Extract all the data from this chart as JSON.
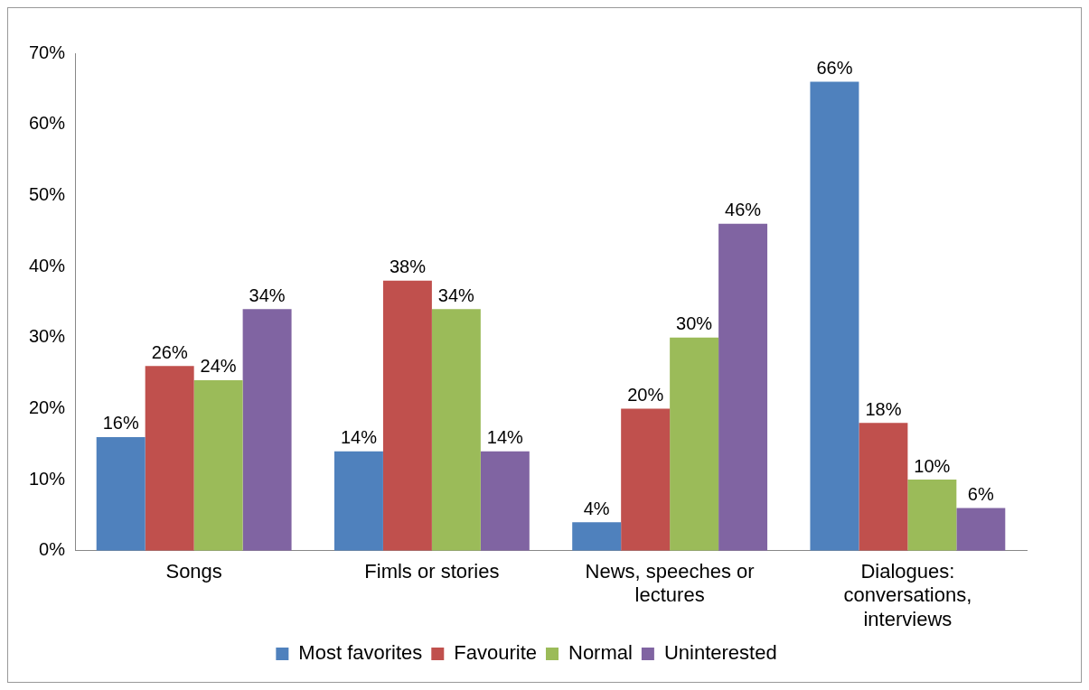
{
  "chart_data": {
    "type": "bar",
    "categories": [
      "Songs",
      "Fimls or stories",
      "News, speeches or lectures",
      "Dialogues: conversations, interviews"
    ],
    "series": [
      {
        "name": "Most favorites",
        "color": "#4f81bd",
        "values": [
          16,
          14,
          4,
          66
        ],
        "value_labels": [
          "16%",
          "14%",
          "4%",
          "66%"
        ]
      },
      {
        "name": "Favourite",
        "color": "#c0504d",
        "values": [
          26,
          38,
          20,
          18
        ],
        "value_labels": [
          "26%",
          "38%",
          "20%",
          "18%"
        ]
      },
      {
        "name": "Normal",
        "color": "#9bbb59",
        "values": [
          24,
          34,
          30,
          10
        ],
        "value_labels": [
          "24%",
          "34%",
          "30%",
          "10%"
        ]
      },
      {
        "name": "Uninterested",
        "color": "#8064a2",
        "values": [
          34,
          14,
          46,
          6
        ],
        "value_labels": [
          "34%",
          "14%",
          "46%",
          "6%"
        ]
      }
    ],
    "ylim": [
      0,
      70
    ],
    "yticks": [
      {
        "value": 0,
        "label": "0%"
      },
      {
        "value": 10,
        "label": "10%"
      },
      {
        "value": 20,
        "label": "20%"
      },
      {
        "value": 30,
        "label": "30%"
      },
      {
        "value": 40,
        "label": "40%"
      },
      {
        "value": 50,
        "label": "50%"
      },
      {
        "value": 60,
        "label": "60%"
      },
      {
        "value": 70,
        "label": "70%"
      }
    ],
    "grid": false,
    "legend": "bottom"
  }
}
